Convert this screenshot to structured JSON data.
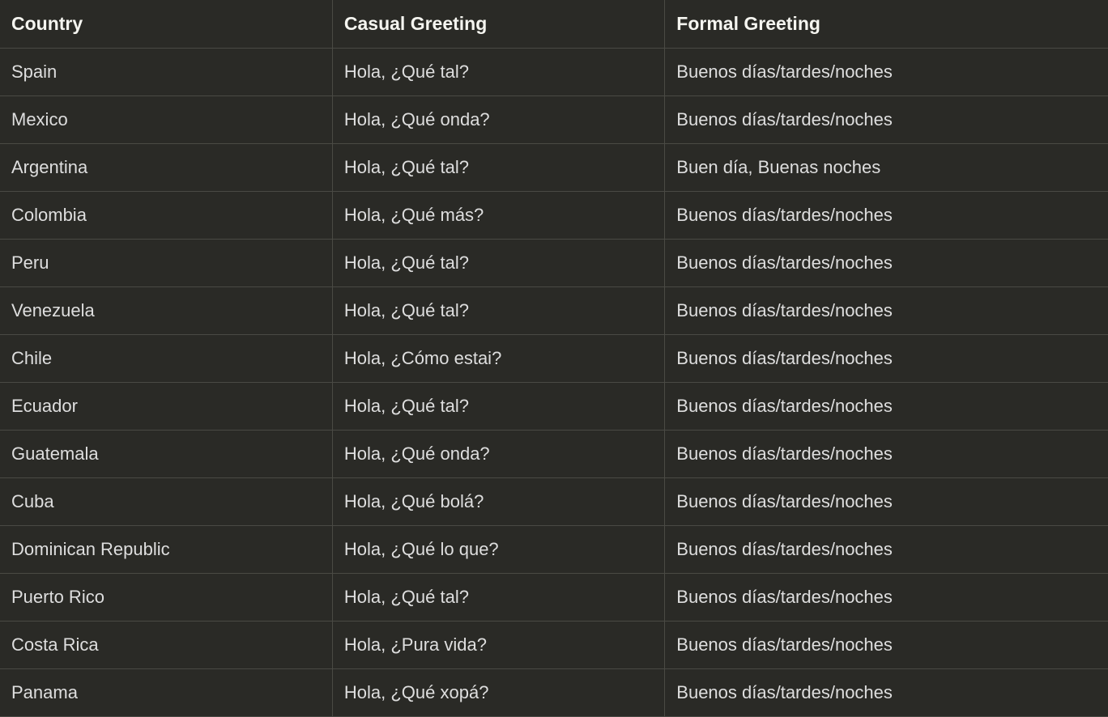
{
  "table": {
    "columns": [
      "Country",
      "Casual Greeting",
      "Formal Greeting"
    ],
    "rows": [
      [
        "Spain",
        "Hola, ¿Qué tal?",
        "Buenos días/tardes/noches"
      ],
      [
        "Mexico",
        "Hola, ¿Qué onda?",
        "Buenos días/tardes/noches"
      ],
      [
        "Argentina",
        "Hola, ¿Qué tal?",
        "Buen día, Buenas noches"
      ],
      [
        "Colombia",
        "Hola, ¿Qué más?",
        "Buenos días/tardes/noches"
      ],
      [
        "Peru",
        "Hola, ¿Qué tal?",
        "Buenos días/tardes/noches"
      ],
      [
        "Venezuela",
        "Hola, ¿Qué tal?",
        "Buenos días/tardes/noches"
      ],
      [
        "Chile",
        "Hola, ¿Cómo estai?",
        "Buenos días/tardes/noches"
      ],
      [
        "Ecuador",
        "Hola, ¿Qué tal?",
        "Buenos días/tardes/noches"
      ],
      [
        "Guatemala",
        "Hola, ¿Qué onda?",
        "Buenos días/tardes/noches"
      ],
      [
        "Cuba",
        "Hola, ¿Qué bolá?",
        "Buenos días/tardes/noches"
      ],
      [
        "Dominican Republic",
        "Hola, ¿Qué lo que?",
        "Buenos días/tardes/noches"
      ],
      [
        "Puerto Rico",
        "Hola, ¿Qué tal?",
        "Buenos días/tardes/noches"
      ],
      [
        "Costa Rica",
        "Hola, ¿Pura vida?",
        "Buenos días/tardes/noches"
      ],
      [
        "Panama",
        "Hola, ¿Qué xopá?",
        "Buenos días/tardes/noches"
      ]
    ],
    "background_color": "#2a2a26",
    "text_color": "#dedede",
    "header_text_color": "#f5f5f0",
    "border_color": "#4a4a44",
    "header_font_weight": 700,
    "cell_font_size": 22,
    "header_font_size": 23
  }
}
